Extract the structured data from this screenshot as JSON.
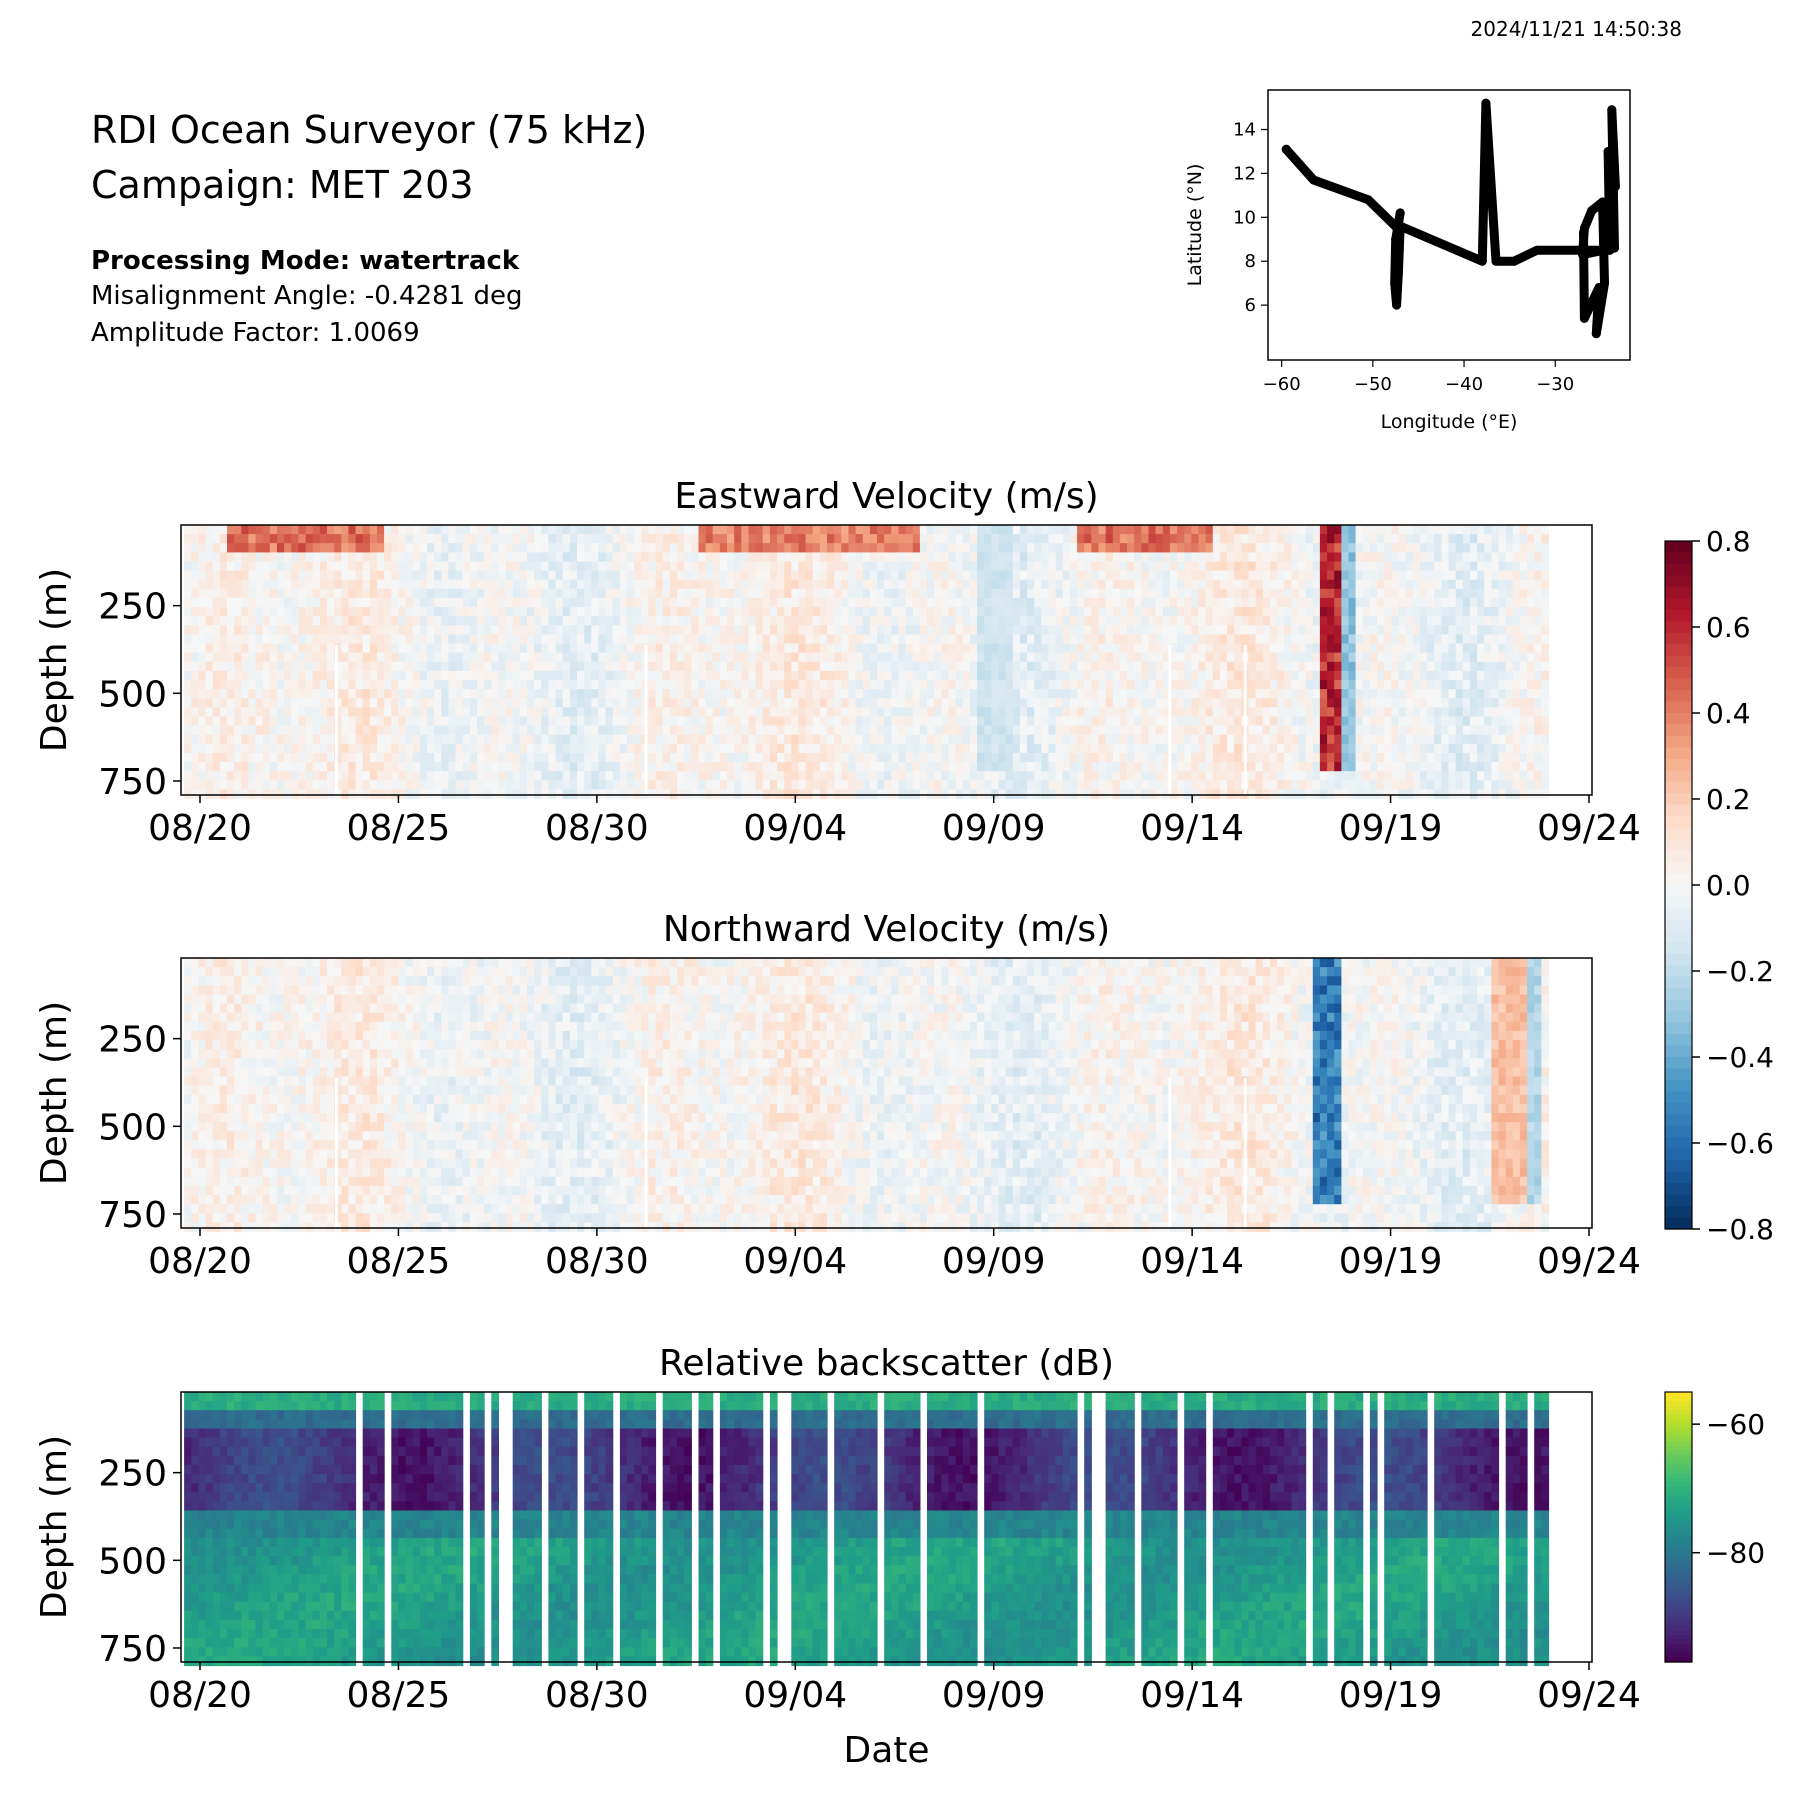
{
  "header": {
    "timestamp": "2024/11/21 14:50:38",
    "instrument": "RDI Ocean Surveyor (75 kHz)",
    "campaign": "Campaign: MET 203",
    "processing_mode": "Processing Mode: watertrack",
    "misalignment": "Misalignment Angle: -0.4281 deg",
    "amplitude_factor": "Amplitude Factor: 1.0069"
  },
  "chart_data": [
    {
      "type": "line",
      "xlabel": "Longitude (°E)",
      "ylabel": "Latitude (°N)",
      "xlim": [
        -61.5,
        -21.8
      ],
      "ylim": [
        3.5,
        15.8
      ],
      "xticks": [
        -60,
        -50,
        -40,
        -30
      ],
      "xticklabels": [
        "−60",
        "−50",
        "−40",
        "−30"
      ],
      "yticks": [
        6,
        8,
        10,
        12,
        14
      ],
      "yticklabels": [
        "6",
        "8",
        "10",
        "12",
        "14"
      ],
      "color": "#000000",
      "track": [
        [
          -59.5,
          13.1
        ],
        [
          -56.5,
          11.7
        ],
        [
          -50.5,
          10.8
        ],
        [
          -47.3,
          9.5
        ],
        [
          -47.0,
          10.2
        ],
        [
          -47.5,
          9.0
        ],
        [
          -47.6,
          7.0
        ],
        [
          -47.4,
          6.0
        ],
        [
          -47.2,
          7.5
        ],
        [
          -47.0,
          9.6
        ],
        [
          -38.0,
          8.0
        ],
        [
          -37.6,
          15.2
        ],
        [
          -36.5,
          8.0
        ],
        [
          -34.5,
          8.0
        ],
        [
          -32.0,
          8.5
        ],
        [
          -27.0,
          8.5
        ],
        [
          -24.0,
          8.5
        ],
        [
          -24.2,
          13.0
        ],
        [
          -23.4,
          11.4
        ],
        [
          -23.8,
          14.9
        ],
        [
          -23.5,
          8.6
        ],
        [
          -27.0,
          8.3
        ],
        [
          -26.8,
          9.5
        ],
        [
          -26.0,
          10.3
        ],
        [
          -24.8,
          10.7
        ],
        [
          -24.6,
          7.0
        ],
        [
          -25.5,
          4.7
        ],
        [
          -25.2,
          6.8
        ],
        [
          -26.8,
          5.4
        ],
        [
          -26.9,
          9.3
        ]
      ]
    },
    {
      "type": "heatmap",
      "title": "Eastward Velocity (m/s)",
      "ylabel": "Depth (m)",
      "x_start": "08/20",
      "x_end": "09/24",
      "xticklabels": [
        "08/20",
        "08/25",
        "08/30",
        "09/04",
        "09/09",
        "09/14",
        "09/19",
        "09/24"
      ],
      "yticks": [
        250,
        500,
        750
      ],
      "yticklabels": [
        "250",
        "500",
        "750"
      ],
      "ylim": [
        790,
        20
      ],
      "data_end_day": 33.8,
      "colormap": "RdBu_r",
      "vmin": -0.8,
      "vmax": 0.8,
      "surface_positive_bands": [
        [
          0.5,
          4.5,
          0.55
        ],
        [
          12.5,
          18,
          0.5
        ],
        [
          22,
          25.5,
          0.55
        ]
      ],
      "strong_features": [
        [
          28.2,
          28.6,
          0.75
        ],
        [
          28.6,
          29.1,
          -0.4
        ],
        [
          19.4,
          20.4,
          -0.2
        ]
      ]
    },
    {
      "type": "heatmap",
      "title": "Northward Velocity (m/s)",
      "ylabel": "Depth (m)",
      "x_start": "08/20",
      "x_end": "09/24",
      "xticklabels": [
        "08/20",
        "08/25",
        "08/30",
        "09/04",
        "09/09",
        "09/14",
        "09/19",
        "09/24"
      ],
      "yticks": [
        250,
        500,
        750
      ],
      "yticklabels": [
        "250",
        "500",
        "750"
      ],
      "ylim": [
        790,
        20
      ],
      "data_end_day": 33.8,
      "colormap": "RdBu_r",
      "vmin": -0.8,
      "vmax": 0.8,
      "colorbar_ticks": [
        "0.8",
        "0.6",
        "0.4",
        "0.2",
        "0.0",
        "−0.2",
        "−0.4",
        "−0.6",
        "−0.8"
      ],
      "strong_features": [
        [
          28.0,
          28.6,
          -0.7
        ],
        [
          32.5,
          33.3,
          0.3
        ],
        [
          33.3,
          33.7,
          -0.3
        ]
      ]
    },
    {
      "type": "heatmap",
      "title": "Relative backscatter (dB)",
      "xlabel": "Date",
      "ylabel": "Depth (m)",
      "x_start": "08/20",
      "x_end": "09/24",
      "xticklabels": [
        "08/20",
        "08/25",
        "08/30",
        "09/04",
        "09/09",
        "09/14",
        "09/19",
        "09/24"
      ],
      "yticks": [
        250,
        500,
        750
      ],
      "yticklabels": [
        "250",
        "500",
        "750"
      ],
      "ylim": [
        790,
        20
      ],
      "data_end_day": 33.8,
      "colormap": "viridis",
      "vmin": -97,
      "vmax": -55,
      "colorbar_ticks": [
        "−60",
        "−80"
      ],
      "colorbar_tick_values": [
        -60,
        -80
      ]
    }
  ]
}
